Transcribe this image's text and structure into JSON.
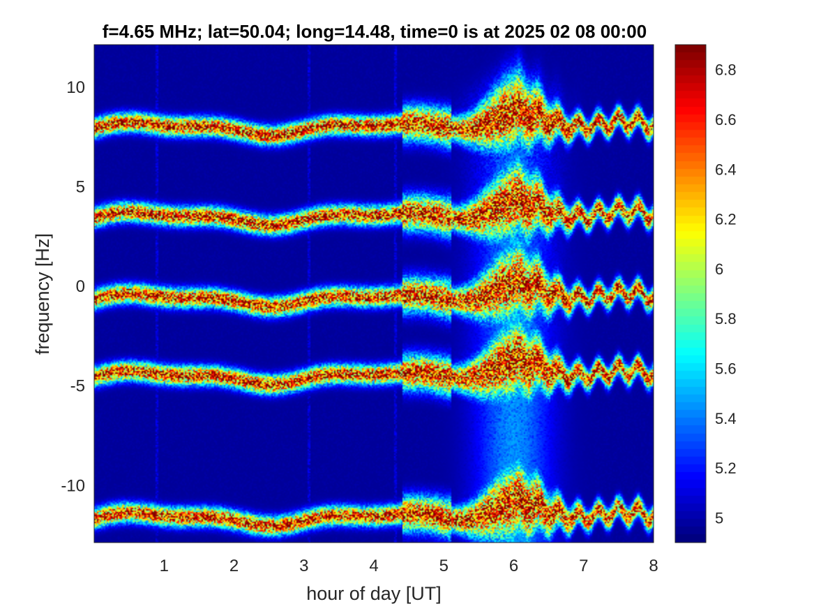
{
  "chart_data": {
    "type": "heatmap",
    "title": "f=4.65 MHz;  lat=50.04; long=14.48, time=0 is at 2025 02 08 00:00",
    "xlabel": "hour of day [UT]",
    "ylabel": "frequency [Hz]",
    "xlim": [
      0,
      8
    ],
    "ylim": [
      -12.9,
      12.1
    ],
    "x_ticks": [
      1,
      2,
      3,
      4,
      5,
      6,
      7,
      8
    ],
    "x_tick_labels": [
      "1",
      "2",
      "3",
      "4",
      "5",
      "6",
      "7",
      "8"
    ],
    "y_ticks": [
      10,
      5,
      0,
      -5,
      -10
    ],
    "y_tick_labels": [
      "10",
      "5",
      "0",
      "-5",
      "-10"
    ],
    "colorbar": {
      "colormap": "jet",
      "range": [
        4.9,
        6.9
      ],
      "ticks": [
        6.8,
        6.6,
        6.4,
        6.2,
        6,
        5.8,
        5.6,
        5.4,
        5.2,
        5
      ],
      "tick_labels": [
        "6.8",
        "6.6",
        "6.4",
        "6.2",
        "6",
        "5.8",
        "5.6",
        "5.4",
        "5.2",
        "5"
      ]
    },
    "background_value": 4.95,
    "bands": [
      {
        "center_hz": 7.9,
        "peak_value": 6.9
      },
      {
        "center_hz": 3.4,
        "peak_value": 6.9
      },
      {
        "center_hz": -0.7,
        "peak_value": 6.9
      },
      {
        "center_hz": -4.6,
        "peak_value": 6.9
      },
      {
        "center_hz": -11.7,
        "peak_value": 6.9
      }
    ],
    "disturbance": {
      "start_hour": 5.2,
      "peak_hour": 6.0,
      "end_hour": 6.6,
      "max_upshift_hz": 1.6
    }
  }
}
